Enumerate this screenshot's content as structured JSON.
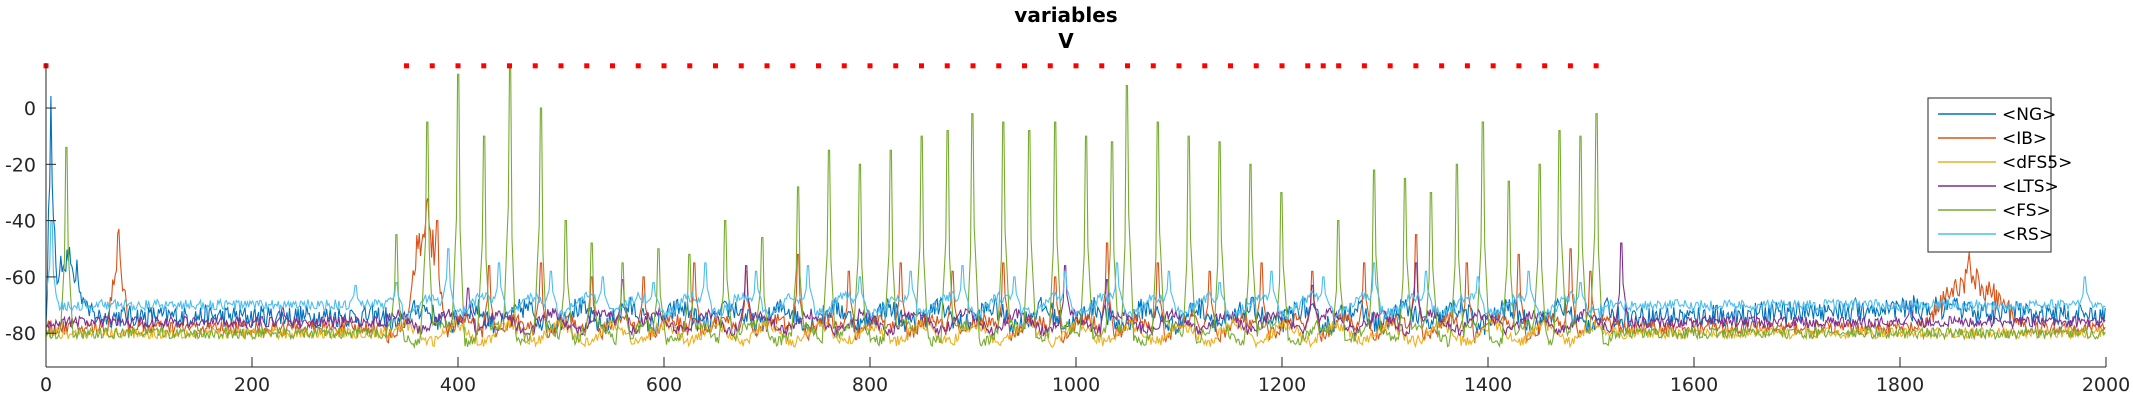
{
  "chart_data": {
    "type": "line",
    "title": [
      "variables",
      "V"
    ],
    "xlabel": "",
    "ylabel": "",
    "xlim": [
      0,
      2000
    ],
    "ylim": [
      -92,
      16
    ],
    "xticks": [
      0,
      200,
      400,
      600,
      800,
      1000,
      1200,
      1400,
      1600,
      1800,
      2000
    ],
    "yticks": [
      0,
      -20,
      -40,
      -60,
      -80
    ],
    "grid": false,
    "legend_position": "right",
    "series": [
      {
        "name": "<NG>",
        "color": "#0072BD",
        "baseline": -74,
        "jitter": 4,
        "bursts": [
          [
            0,
            10,
            12
          ],
          [
            0,
            45,
            -45
          ],
          [
            1600,
            2000,
            -70
          ]
        ],
        "spikes": []
      },
      {
        "name": "<IB>",
        "color": "#D95319",
        "baseline": -78,
        "jitter": 2.5,
        "bursts": [
          [
            60,
            80,
            -36
          ],
          [
            350,
            390,
            -22
          ],
          [
            1820,
            1920,
            -52
          ]
        ],
        "spikes": [
          [
            380,
            -40
          ],
          [
            430,
            -56
          ],
          [
            480,
            -55
          ],
          [
            530,
            -60
          ],
          [
            580,
            -60
          ],
          [
            630,
            -55
          ],
          [
            680,
            -58
          ],
          [
            730,
            -52
          ],
          [
            780,
            -58
          ],
          [
            830,
            -55
          ],
          [
            880,
            -58
          ],
          [
            930,
            -55
          ],
          [
            980,
            -60
          ],
          [
            1030,
            -48
          ],
          [
            1080,
            -55
          ],
          [
            1130,
            -58
          ],
          [
            1180,
            -55
          ],
          [
            1230,
            -58
          ],
          [
            1280,
            -55
          ],
          [
            1330,
            -45
          ],
          [
            1380,
            -55
          ],
          [
            1430,
            -52
          ],
          [
            1480,
            -50
          ],
          [
            1500,
            -58
          ]
        ]
      },
      {
        "name": "<dFS5>",
        "color": "#EDB120",
        "baseline": -80,
        "jitter": 2,
        "bursts": [],
        "spikes": []
      },
      {
        "name": "<LTS>",
        "color": "#7E2F8E",
        "baseline": -76,
        "jitter": 2,
        "bursts": [],
        "spikes": [
          [
            230,
            -71
          ],
          [
            410,
            -64
          ],
          [
            560,
            -61
          ],
          [
            680,
            -56
          ],
          [
            990,
            -56
          ],
          [
            1030,
            -61
          ],
          [
            1230,
            -63
          ],
          [
            1330,
            -55
          ],
          [
            1530,
            -48
          ],
          [
            1810,
            -70
          ]
        ]
      },
      {
        "name": "<FS>",
        "color": "#77AC30",
        "baseline": -80,
        "jitter": 2,
        "bursts": [],
        "spikes": [
          [
            20,
            -14
          ],
          [
            340,
            -45
          ],
          [
            370,
            -5
          ],
          [
            400,
            12
          ],
          [
            425,
            -10
          ],
          [
            450,
            14
          ],
          [
            480,
            0
          ],
          [
            505,
            -40
          ],
          [
            530,
            -48
          ],
          [
            560,
            -55
          ],
          [
            595,
            -50
          ],
          [
            625,
            -52
          ],
          [
            660,
            -40
          ],
          [
            695,
            -46
          ],
          [
            730,
            -28
          ],
          [
            760,
            -15
          ],
          [
            790,
            -20
          ],
          [
            820,
            -15
          ],
          [
            850,
            -10
          ],
          [
            875,
            -8
          ],
          [
            900,
            -2
          ],
          [
            930,
            -5
          ],
          [
            955,
            -8
          ],
          [
            980,
            -5
          ],
          [
            1010,
            -10
          ],
          [
            1035,
            -12
          ],
          [
            1050,
            8
          ],
          [
            1080,
            -5
          ],
          [
            1110,
            -10
          ],
          [
            1140,
            -12
          ],
          [
            1170,
            -20
          ],
          [
            1200,
            -30
          ],
          [
            1255,
            -40
          ],
          [
            1290,
            -22
          ],
          [
            1320,
            -25
          ],
          [
            1345,
            -30
          ],
          [
            1370,
            -20
          ],
          [
            1395,
            -5
          ],
          [
            1420,
            -26
          ],
          [
            1450,
            -20
          ],
          [
            1470,
            -8
          ],
          [
            1490,
            -10
          ],
          [
            1505,
            -2
          ]
        ]
      },
      {
        "name": "<RS>",
        "color": "#4DBEEE",
        "baseline": -70,
        "jitter": 2,
        "bursts": [],
        "spikes": [
          [
            5,
            -40
          ],
          [
            300,
            -63
          ],
          [
            340,
            -62
          ],
          [
            390,
            -50
          ],
          [
            440,
            -55
          ],
          [
            490,
            -58
          ],
          [
            540,
            -60
          ],
          [
            590,
            -62
          ],
          [
            640,
            -55
          ],
          [
            690,
            -58
          ],
          [
            740,
            -56
          ],
          [
            790,
            -60
          ],
          [
            840,
            -58
          ],
          [
            890,
            -56
          ],
          [
            940,
            -60
          ],
          [
            990,
            -58
          ],
          [
            1040,
            -55
          ],
          [
            1090,
            -58
          ],
          [
            1140,
            -62
          ],
          [
            1190,
            -58
          ],
          [
            1240,
            -60
          ],
          [
            1290,
            -55
          ],
          [
            1340,
            -58
          ],
          [
            1390,
            -60
          ],
          [
            1440,
            -58
          ],
          [
            1490,
            -62
          ],
          [
            1980,
            -60
          ]
        ]
      }
    ],
    "markers": {
      "color": "#FF0000",
      "y": 15,
      "x": [
        0,
        350,
        375,
        400,
        425,
        450,
        475,
        500,
        525,
        550,
        575,
        600,
        625,
        650,
        675,
        700,
        725,
        750,
        775,
        800,
        825,
        850,
        875,
        900,
        925,
        950,
        975,
        1000,
        1025,
        1050,
        1075,
        1100,
        1125,
        1150,
        1175,
        1200,
        1225,
        1240,
        1255,
        1280,
        1305,
        1330,
        1355,
        1380,
        1405,
        1430,
        1455,
        1480,
        1505
      ]
    }
  }
}
